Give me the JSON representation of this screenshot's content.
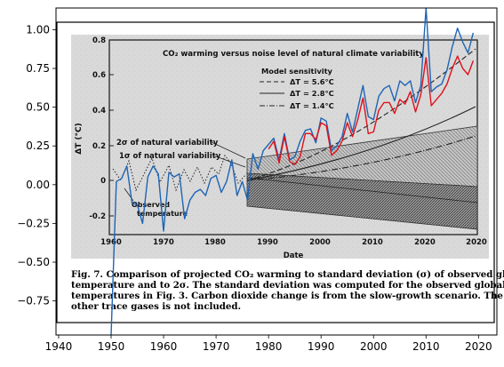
{
  "chart_data": {
    "type": "line",
    "x_ticks": [
      1940,
      1950,
      1960,
      1970,
      1980,
      1990,
      2000,
      2010,
      2020
    ],
    "y_ticks": [
      1.0,
      0.75,
      0.5,
      0.25,
      0.0,
      -0.25,
      -0.5,
      -0.75
    ],
    "y_tick_labels": [
      "1.00",
      "0.75",
      "0.50",
      "0.25",
      "0.00",
      "−0.25",
      "−0.50",
      "−0.75"
    ],
    "xlim": [
      1939.5,
      2023.5
    ],
    "ylim": [
      -0.97,
      1.14
    ],
    "grid": false,
    "series": [
      {
        "color": "#1f64b4",
        "x": [
          1950,
          1951,
          1952,
          1953,
          1954,
          1955,
          1956,
          1957,
          1958,
          1959,
          1960,
          1961,
          1962,
          1963,
          1964,
          1965,
          1966,
          1967,
          1968,
          1969,
          1970,
          1971,
          1972,
          1973,
          1974,
          1975,
          1976,
          1977,
          1978,
          1979,
          1980,
          1981,
          1982,
          1983,
          1984,
          1985,
          1986,
          1987,
          1988,
          1989,
          1990,
          1991,
          1992,
          1993,
          1994,
          1995,
          1996,
          1997,
          1998,
          1999,
          2000,
          2001,
          2002,
          2003,
          2004,
          2005,
          2006,
          2007,
          2008,
          2009,
          2010,
          2011,
          2012,
          2013,
          2014,
          2015,
          2016,
          2017,
          2018,
          2019
        ],
        "y": [
          -0.97,
          0.02,
          0.04,
          0.12,
          -0.12,
          -0.13,
          -0.25,
          0.05,
          0.12,
          0.07,
          -0.3,
          0.08,
          0.05,
          0.07,
          -0.22,
          -0.1,
          -0.05,
          -0.03,
          -0.07,
          0.04,
          0.06,
          -0.05,
          0.02,
          0.16,
          -0.07,
          0.02,
          -0.1,
          0.2,
          0.1,
          0.22,
          0.26,
          0.3,
          0.16,
          0.33,
          0.16,
          0.18,
          0.28,
          0.35,
          0.36,
          0.27,
          0.43,
          0.41,
          0.22,
          0.25,
          0.31,
          0.46,
          0.34,
          0.49,
          0.64,
          0.44,
          0.42,
          0.57,
          0.62,
          0.64,
          0.54,
          0.67,
          0.64,
          0.67,
          0.53,
          0.64,
          1.14,
          0.6,
          0.63,
          0.65,
          0.74,
          0.89,
          1.01,
          0.92,
          0.85,
          0.98
        ]
      },
      {
        "color": "#e0101a",
        "x": [
          1980,
          1981,
          1982,
          1983,
          1984,
          1985,
          1986,
          1987,
          1988,
          1989,
          1990,
          1991,
          1992,
          1993,
          1994,
          1995,
          1996,
          1997,
          1998,
          1999,
          2000,
          2001,
          2002,
          2003,
          2004,
          2005,
          2006,
          2007,
          2008,
          2009,
          2010,
          2011,
          2012,
          2013,
          2014,
          2015,
          2016,
          2017,
          2018,
          2019
        ],
        "y": [
          0.23,
          0.28,
          0.14,
          0.31,
          0.15,
          0.13,
          0.18,
          0.33,
          0.33,
          0.29,
          0.4,
          0.38,
          0.19,
          0.22,
          0.28,
          0.4,
          0.31,
          0.42,
          0.56,
          0.33,
          0.34,
          0.48,
          0.53,
          0.53,
          0.46,
          0.55,
          0.52,
          0.6,
          0.47,
          0.58,
          0.82,
          0.51,
          0.55,
          0.59,
          0.65,
          0.75,
          0.83,
          0.75,
          0.71,
          0.8
        ]
      }
    ]
  },
  "embedded_figure": {
    "title": "CO₂ warming versus noise level of natural climate variability",
    "y_axis_label": "ΔT (°C)",
    "x_axis_label": "Date",
    "x_ticks": [
      "1960",
      "1970",
      "1980",
      "1990",
      "2000",
      "2010",
      "2020"
    ],
    "y_ticks": [
      "0.8",
      "0.6",
      "0.4",
      "0.2",
      "0",
      "-0.2"
    ],
    "legend_title": "Model sensitivity",
    "legend": [
      "ΔT = 5.6°C",
      "ΔT = 2.8°C",
      "ΔT = 1.4°C"
    ],
    "annotation_2sigma": "2σ of natural variability",
    "annotation_1sigma": "1σ of natural variability",
    "annotation_observed_1": "Observed",
    "annotation_observed_2": "temperature",
    "caption_lines": [
      "Fig. 7. Comparison of projected CO₂ warming to standard deviation (σ) of observed global",
      "temperature and to 2σ. The standard deviation was computed for the observed global",
      "temperatures in Fig. 3. Carbon dioxide change is from the slow-growth scenario. The effect of",
      "other trace gases is not included."
    ]
  }
}
